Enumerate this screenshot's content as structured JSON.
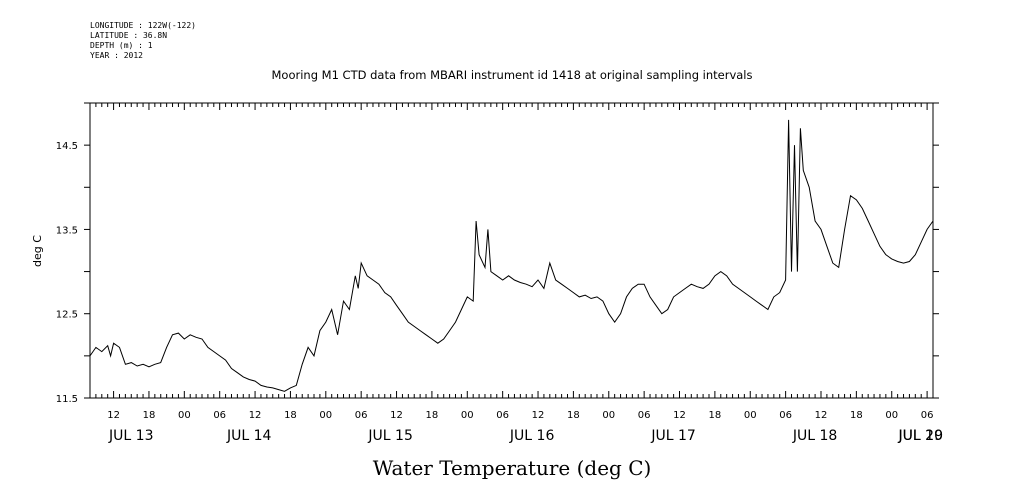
{
  "meta": {
    "longitude": "LONGITUDE : 122W(-122)",
    "latitude": "LATITUDE : 36.8N",
    "depth": "DEPTH (m) : 1",
    "year": "YEAR : 2012"
  },
  "chart_data": {
    "type": "line",
    "title": "Mooring M1 CTD data from MBARI instrument id 1418 at original sampling intervals",
    "xlabel": "Water Temperature (deg C)",
    "ylabel": "deg C",
    "x_units": "hours since JUL 12 2012 00:00",
    "xlim": [
      8,
      151
    ],
    "ylim": [
      11.5,
      15.0
    ],
    "y_ticks": [
      11.5,
      12.5,
      13.5,
      14.5
    ],
    "y_tick_labels": [
      "11.5",
      "12.5",
      "13.5",
      "14.5"
    ],
    "hour_ticks": [
      12,
      18,
      24,
      30,
      36,
      42,
      48,
      54,
      60,
      66,
      72,
      78,
      84,
      90,
      96,
      102,
      108,
      114,
      120,
      126,
      132,
      138,
      144,
      150
    ],
    "hour_tick_labels": [
      "12",
      "18",
      "00",
      "06",
      "12",
      "18",
      "00",
      "06",
      "12",
      "18",
      "00",
      "06",
      "12",
      "18",
      "00",
      "06",
      "12",
      "18",
      "00",
      "06",
      "12",
      "18",
      "00",
      "06"
    ],
    "date_labels": [
      {
        "x": 15,
        "label": "JUL 13"
      },
      {
        "x": 35,
        "label": "JUL 14"
      },
      {
        "x": 59,
        "label": "JUL 15"
      },
      {
        "x": 83,
        "label": "JUL 16"
      },
      {
        "x": 107,
        "label": "JUL 17"
      },
      {
        "x": 131,
        "label": "JUL 18"
      },
      {
        "x": 155,
        "label": "JUL 19"
      },
      {
        "x": 174,
        "label": "JUL 20"
      }
    ],
    "grid": false,
    "color": "#000000",
    "series": [
      {
        "values": [
          [
            8,
            12.0
          ],
          [
            9,
            12.1
          ],
          [
            10,
            12.05
          ],
          [
            11,
            12.12
          ],
          [
            11.5,
            12.0
          ],
          [
            12,
            12.15
          ],
          [
            13,
            12.1
          ],
          [
            14,
            11.9
          ],
          [
            15,
            11.92
          ],
          [
            16,
            11.88
          ],
          [
            17,
            11.9
          ],
          [
            18,
            11.87
          ],
          [
            19,
            11.9
          ],
          [
            20,
            11.92
          ],
          [
            21,
            12.1
          ],
          [
            22,
            12.25
          ],
          [
            23,
            12.27
          ],
          [
            24,
            12.2
          ],
          [
            25,
            12.25
          ],
          [
            26,
            12.22
          ],
          [
            27,
            12.2
          ],
          [
            28,
            12.1
          ],
          [
            29,
            12.05
          ],
          [
            30,
            12.0
          ],
          [
            31,
            11.95
          ],
          [
            32,
            11.85
          ],
          [
            33,
            11.8
          ],
          [
            34,
            11.75
          ],
          [
            35,
            11.72
          ],
          [
            36,
            11.7
          ],
          [
            37,
            11.65
          ],
          [
            38,
            11.63
          ],
          [
            39,
            11.62
          ],
          [
            40,
            11.6
          ],
          [
            41,
            11.58
          ],
          [
            42,
            11.62
          ],
          [
            43,
            11.65
          ],
          [
            44,
            11.9
          ],
          [
            45,
            12.1
          ],
          [
            46,
            12.0
          ],
          [
            47,
            12.3
          ],
          [
            48,
            12.4
          ],
          [
            49,
            12.55
          ],
          [
            50,
            12.25
          ],
          [
            51,
            12.65
          ],
          [
            52,
            12.55
          ],
          [
            53,
            12.95
          ],
          [
            53.5,
            12.8
          ],
          [
            54,
            13.1
          ],
          [
            55,
            12.95
          ],
          [
            56,
            12.9
          ],
          [
            57,
            12.85
          ],
          [
            58,
            12.75
          ],
          [
            59,
            12.7
          ],
          [
            60,
            12.6
          ],
          [
            61,
            12.5
          ],
          [
            62,
            12.4
          ],
          [
            63,
            12.35
          ],
          [
            64,
            12.3
          ],
          [
            65,
            12.25
          ],
          [
            66,
            12.2
          ],
          [
            67,
            12.15
          ],
          [
            68,
            12.2
          ],
          [
            69,
            12.3
          ],
          [
            70,
            12.4
          ],
          [
            71,
            12.55
          ],
          [
            72,
            12.7
          ],
          [
            73,
            12.65
          ],
          [
            73.5,
            13.6
          ],
          [
            74,
            13.2
          ],
          [
            75,
            13.05
          ],
          [
            75.5,
            13.5
          ],
          [
            76,
            13.0
          ],
          [
            77,
            12.95
          ],
          [
            78,
            12.9
          ],
          [
            79,
            12.95
          ],
          [
            80,
            12.9
          ],
          [
            81,
            12.87
          ],
          [
            82,
            12.85
          ],
          [
            83,
            12.82
          ],
          [
            84,
            12.9
          ],
          [
            85,
            12.8
          ],
          [
            86,
            13.1
          ],
          [
            87,
            12.9
          ],
          [
            88,
            12.85
          ],
          [
            89,
            12.8
          ],
          [
            90,
            12.75
          ],
          [
            91,
            12.7
          ],
          [
            92,
            12.72
          ],
          [
            93,
            12.68
          ],
          [
            94,
            12.7
          ],
          [
            95,
            12.65
          ],
          [
            96,
            12.5
          ],
          [
            97,
            12.4
          ],
          [
            98,
            12.5
          ],
          [
            99,
            12.7
          ],
          [
            100,
            12.8
          ],
          [
            101,
            12.85
          ],
          [
            102,
            12.85
          ],
          [
            103,
            12.7
          ],
          [
            104,
            12.6
          ],
          [
            105,
            12.5
          ],
          [
            106,
            12.55
          ],
          [
            107,
            12.7
          ],
          [
            108,
            12.75
          ],
          [
            109,
            12.8
          ],
          [
            110,
            12.85
          ],
          [
            111,
            12.82
          ],
          [
            112,
            12.8
          ],
          [
            113,
            12.85
          ],
          [
            114,
            12.95
          ],
          [
            115,
            13.0
          ],
          [
            116,
            12.95
          ],
          [
            117,
            12.85
          ],
          [
            118,
            12.8
          ],
          [
            119,
            12.75
          ],
          [
            120,
            12.7
          ],
          [
            121,
            12.65
          ],
          [
            122,
            12.6
          ],
          [
            123,
            12.55
          ],
          [
            124,
            12.7
          ],
          [
            125,
            12.75
          ],
          [
            126,
            12.9
          ],
          [
            126.5,
            14.8
          ],
          [
            127,
            13.0
          ],
          [
            127.5,
            14.5
          ],
          [
            128,
            13.0
          ],
          [
            128.5,
            14.7
          ],
          [
            129,
            14.2
          ],
          [
            130,
            14.0
          ],
          [
            131,
            13.6
          ],
          [
            132,
            13.5
          ],
          [
            133,
            13.3
          ],
          [
            134,
            13.1
          ],
          [
            135,
            13.05
          ],
          [
            136,
            13.5
          ],
          [
            137,
            13.9
          ],
          [
            138,
            13.85
          ],
          [
            139,
            13.75
          ],
          [
            140,
            13.6
          ],
          [
            141,
            13.45
          ],
          [
            142,
            13.3
          ],
          [
            143,
            13.2
          ],
          [
            144,
            13.15
          ],
          [
            145,
            13.12
          ],
          [
            146,
            13.1
          ],
          [
            147,
            13.12
          ],
          [
            148,
            13.2
          ],
          [
            149,
            13.35
          ],
          [
            150,
            13.5
          ],
          [
            151,
            13.6
          ]
        ]
      }
    ]
  }
}
